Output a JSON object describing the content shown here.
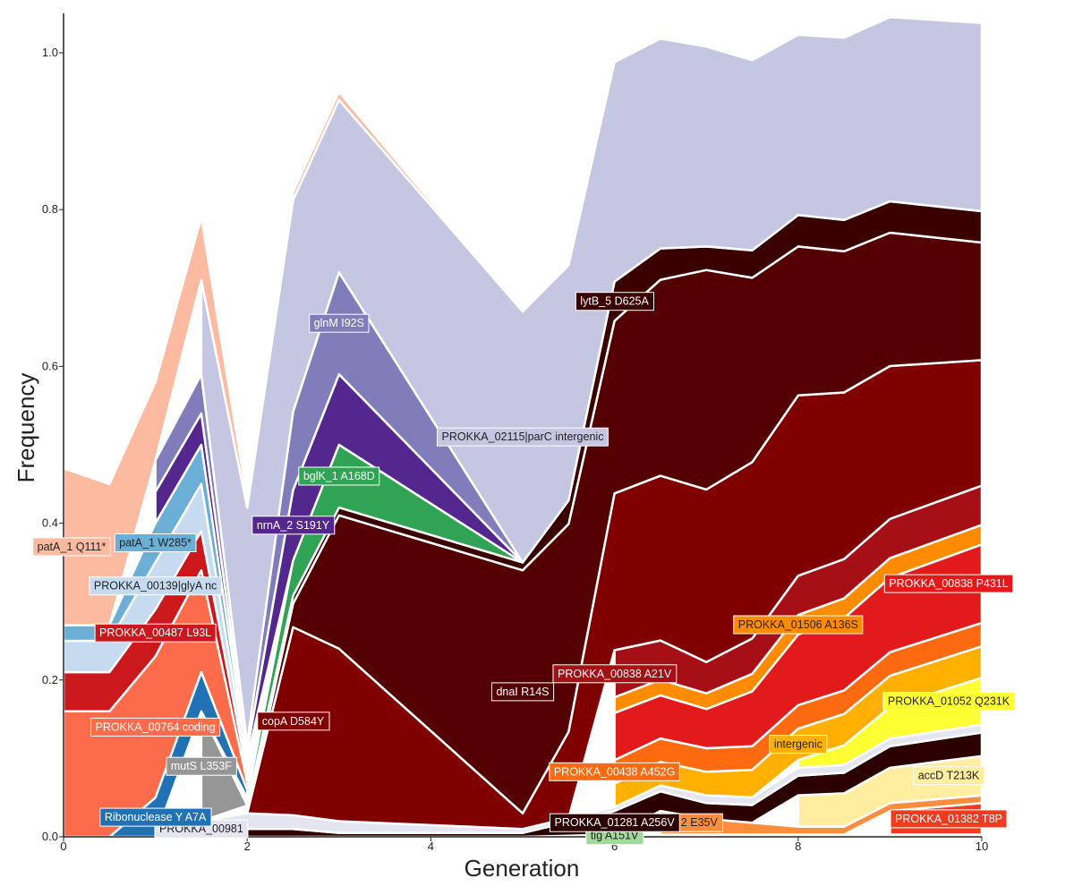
{
  "chart_data": {
    "type": "area",
    "xlabel": "Generation",
    "ylabel": "Frequency",
    "xlim": [
      0,
      10
    ],
    "ylim": [
      0,
      1.05
    ],
    "xticks": [
      "0",
      "2",
      "4",
      "6",
      "8",
      "10"
    ],
    "yticks": [
      "0.0",
      "0.2",
      "0.4",
      "0.6",
      "0.8",
      "1.0"
    ],
    "grid": false,
    "x": [
      0,
      0.5,
      1,
      1.5,
      2,
      2.5,
      3,
      3.5,
      4,
      4.5,
      5,
      5.5,
      6,
      6.5,
      7,
      7.5,
      8,
      8.5,
      9,
      9.5,
      10
    ],
    "series": [
      {
        "name": "tig A151V",
        "color": "#a1d99b",
        "points": [
          [
            5,
            0.0
          ],
          [
            6,
            0.003
          ],
          [
            10,
            0.003
          ]
        ]
      },
      {
        "name": "PROKKA_01382 T8P",
        "color": "#f03b20",
        "points": [
          [
            9,
            0.03
          ],
          [
            10,
            0.04
          ]
        ]
      },
      {
        "name": "PROKKA_00512 E35V",
        "color": "#fd8d3c",
        "points": [
          [
            6.5,
            0.03
          ],
          [
            7,
            0.02
          ],
          [
            8,
            0.01
          ],
          [
            10,
            0.01
          ]
        ]
      },
      {
        "name": "accD T213K",
        "color": "#ffeda0",
        "points": [
          [
            8,
            0.04
          ],
          [
            10,
            0.05
          ]
        ]
      },
      {
        "name": "PROKKA_01281 A256V",
        "color": "#2d0000",
        "points": [
          [
            2,
            0.01
          ],
          [
            2.5,
            0.01
          ],
          [
            3,
            0.005
          ],
          [
            5,
            0.005
          ],
          [
            6,
            0.03
          ],
          [
            7,
            0.02
          ],
          [
            8,
            0.025
          ],
          [
            10,
            0.03
          ]
        ]
      },
      {
        "name": "PROKKA_00981",
        "color": "#e5e5f2",
        "points": [
          [
            1.5,
            0.02
          ],
          [
            2,
            0.02
          ],
          [
            5,
            0.005
          ],
          [
            6,
            0.005
          ],
          [
            7,
            0.01
          ],
          [
            10,
            0.01
          ]
        ]
      },
      {
        "name": "PROKKA_01052 Q231K",
        "color": "#ffff33",
        "points": [
          [
            8,
            0.01
          ],
          [
            9,
            0.04
          ],
          [
            10,
            0.06
          ]
        ]
      },
      {
        "name": "intergenic",
        "color": "#ffb000",
        "points": [
          [
            6,
            0.03
          ],
          [
            7,
            0.03
          ],
          [
            8,
            0.04
          ],
          [
            10,
            0.04
          ]
        ]
      },
      {
        "name": "PROKKA_00438 A452G",
        "color": "#fd6a10",
        "points": [
          [
            6,
            0.03
          ],
          [
            7,
            0.03
          ],
          [
            8,
            0.03
          ],
          [
            10,
            0.03
          ]
        ]
      },
      {
        "name": "PROKKA_00838 P431L",
        "color": "#e31a1c",
        "points": [
          [
            6,
            0.06
          ],
          [
            7,
            0.05
          ],
          [
            8,
            0.09
          ],
          [
            10,
            0.1
          ]
        ]
      },
      {
        "name": "PROKKA_01506 A136S",
        "color": "#ff8c00",
        "points": [
          [
            6,
            0.02
          ],
          [
            7,
            0.02
          ],
          [
            8,
            0.025
          ],
          [
            10,
            0.025
          ]
        ]
      },
      {
        "name": "PROKKA_00838 A21V",
        "color": "#a50f15",
        "points": [
          [
            6,
            0.06
          ],
          [
            7,
            0.04
          ],
          [
            8,
            0.05
          ],
          [
            10,
            0.05
          ]
        ]
      },
      {
        "name": "copA D584Y",
        "color": "#800000",
        "points": [
          [
            2,
            0.0
          ],
          [
            2.5,
            0.24
          ],
          [
            3,
            0.22
          ],
          [
            5,
            0.02
          ],
          [
            6,
            0.2
          ],
          [
            7,
            0.22
          ],
          [
            8,
            0.23
          ],
          [
            10,
            0.16
          ]
        ]
      },
      {
        "name": "dnaI R14S",
        "color": "#550000",
        "points": [
          [
            2,
            0.0
          ],
          [
            2.5,
            0.03
          ],
          [
            3,
            0.17
          ],
          [
            5,
            0.31
          ],
          [
            6,
            0.22
          ],
          [
            7,
            0.28
          ],
          [
            8,
            0.19
          ],
          [
            10,
            0.15
          ]
        ]
      },
      {
        "name": "lytB_5 D625A",
        "color": "#3a0000",
        "points": [
          [
            2,
            0.01
          ],
          [
            2.5,
            0.01
          ],
          [
            3,
            0.01
          ],
          [
            5,
            0.01
          ],
          [
            6,
            0.05
          ],
          [
            7,
            0.03
          ],
          [
            8,
            0.04
          ],
          [
            10,
            0.04
          ]
        ]
      },
      {
        "name": "mutS L353F",
        "color": "#969696",
        "points": [
          [
            1.5,
            0.14
          ],
          [
            2,
            0.0
          ]
        ]
      },
      {
        "name": "bglK_1 A168D",
        "color": "#31a354",
        "points": [
          [
            2,
            0.01
          ],
          [
            3,
            0.08
          ],
          [
            5,
            0.0
          ]
        ]
      },
      {
        "name": "Ribonuclease Y A7A",
        "color": "#2171b5",
        "points": [
          [
            0.5,
            0.0
          ],
          [
            1,
            0.05
          ],
          [
            1.5,
            0.05
          ],
          [
            2,
            0.01
          ]
        ]
      },
      {
        "name": "PROKKA_00764 coding",
        "color": "#fc6c4a",
        "points": [
          [
            0,
            0.16
          ],
          [
            0.5,
            0.16
          ],
          [
            1,
            0.18
          ],
          [
            1.5,
            0.13
          ],
          [
            2,
            0.01
          ]
        ]
      },
      {
        "name": "PROKKA_00487 L93L",
        "color": "#cb181d",
        "points": [
          [
            0,
            0.05
          ],
          [
            0.5,
            0.05
          ],
          [
            1,
            0.06
          ],
          [
            1.5,
            0.05
          ],
          [
            2,
            0.01
          ]
        ]
      },
      {
        "name": "PROKKA_00139|glyA nc",
        "color": "#c6dbef",
        "points": [
          [
            0,
            0.04
          ],
          [
            0.5,
            0.04
          ],
          [
            1,
            0.06
          ],
          [
            1.5,
            0.06
          ],
          [
            2,
            0.01
          ]
        ]
      },
      {
        "name": "patA_1 W285*",
        "color": "#6baed6",
        "points": [
          [
            0,
            0.02
          ],
          [
            0.5,
            0.02
          ],
          [
            1,
            0.05
          ],
          [
            1.5,
            0.05
          ],
          [
            2,
            0.01
          ]
        ]
      },
      {
        "name": "nrnA_2 S191Y",
        "color": "#54278f",
        "points": [
          [
            1,
            0.04
          ],
          [
            1.5,
            0.04
          ],
          [
            2,
            0.01
          ],
          [
            2.5,
            0.09
          ],
          [
            3,
            0.09
          ],
          [
            5,
            0.0
          ]
        ]
      },
      {
        "name": "glnM I92S",
        "color": "#807dba",
        "points": [
          [
            1,
            0.04
          ],
          [
            1.5,
            0.05
          ],
          [
            2,
            0.01
          ],
          [
            2.5,
            0.1
          ],
          [
            3,
            0.13
          ],
          [
            5,
            0.0
          ]
        ]
      },
      {
        "name": "PROKKA_02115|parC intergenic",
        "color": "#c5c7e2",
        "points": [
          [
            1.5,
            0.12
          ],
          [
            2,
            0.3
          ],
          [
            2.5,
            0.27
          ],
          [
            3,
            0.22
          ],
          [
            5,
            0.32
          ],
          [
            6,
            0.28
          ],
          [
            8,
            0.23
          ],
          [
            10,
            0.24
          ]
        ]
      },
      {
        "name": "patA_1 Q111*",
        "color": "#fcbba1",
        "points": [
          [
            0,
            0.2
          ],
          [
            0.5,
            0.18
          ],
          [
            1,
            0.1
          ],
          [
            1.5,
            0.08
          ],
          [
            2,
            0.01
          ],
          [
            3,
            0.01
          ],
          [
            5,
            0.0
          ]
        ]
      }
    ]
  }
}
